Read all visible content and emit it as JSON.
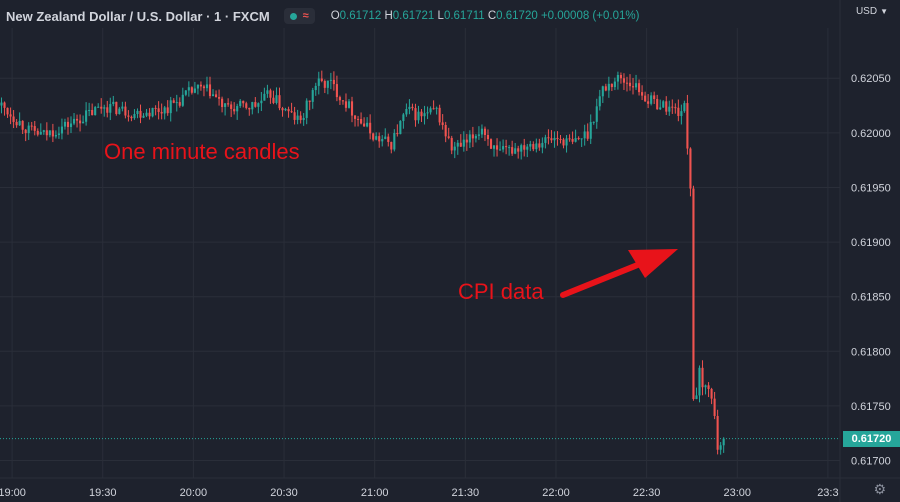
{
  "header": {
    "title": "New Zealand Dollar / U.S. Dollar · 1 · FXCM",
    "ohlc": {
      "open_label": "O",
      "open": "0.61712",
      "high_label": "H",
      "high": "0.61721",
      "low_label": "L",
      "low": "0.61711",
      "close_label": "C",
      "close": "0.61720",
      "change": "+0.00008 (+0.01%)"
    },
    "currency": "USD"
  },
  "icons": {
    "status": "dot-icon",
    "wave": "wave-icon",
    "dropdown": "chevron-down-icon",
    "settings": "gear-icon"
  },
  "colors": {
    "up": "#26a69a",
    "down": "#ef5350",
    "annotation": "#e8131a",
    "background": "#1e222d"
  },
  "annotations": {
    "candles_note": "One minute candles",
    "cpi_note": "CPI data"
  },
  "last_price_label": "0.61720",
  "chart_data": {
    "type": "candlestick",
    "interval": "1 minute",
    "x_start": "18:56",
    "x_end": "23:34",
    "y_ticks": [
      0.6205,
      0.62,
      0.6195,
      0.619,
      0.6185,
      0.618,
      0.6175,
      0.617
    ],
    "y_tick_labels": [
      "0.62050",
      "0.62000",
      "0.61950",
      "0.61900",
      "0.61850",
      "0.61800",
      "0.61750",
      "0.61700"
    ],
    "x_ticks": [
      "19:00",
      "19:30",
      "20:00",
      "20:30",
      "21:00",
      "21:30",
      "22:00",
      "22:30",
      "23:00",
      "23:30"
    ],
    "x_tick_labels": [
      "19:00",
      "19:30",
      "20:00",
      "20:30",
      "21:00",
      "21:30",
      "22:00",
      "22:30",
      "23:00",
      "23:3"
    ],
    "ylim": [
      0.61684,
      0.62096
    ],
    "last_price": 0.6172,
    "price_line": 0.6172,
    "grid": true,
    "keypoints": [
      [
        "18:56",
        0.62025
      ],
      [
        "19:05",
        0.62002
      ],
      [
        "19:10",
        0.61998
      ],
      [
        "19:20",
        0.6201
      ],
      [
        "19:30",
        0.62025
      ],
      [
        "19:40",
        0.62018
      ],
      [
        "19:50",
        0.62022
      ],
      [
        "19:55",
        0.6203
      ],
      [
        "20:00",
        0.6204
      ],
      [
        "20:05",
        0.62038
      ],
      [
        "20:10",
        0.62022
      ],
      [
        "20:20",
        0.62025
      ],
      [
        "20:25",
        0.62035
      ],
      [
        "20:30",
        0.6202
      ],
      [
        "20:35",
        0.6201
      ],
      [
        "20:40",
        0.62045
      ],
      [
        "20:45",
        0.62045
      ],
      [
        "20:55",
        0.6201
      ],
      [
        "21:00",
        0.61995
      ],
      [
        "21:05",
        0.6199
      ],
      [
        "21:10",
        0.6202
      ],
      [
        "21:15",
        0.62015
      ],
      [
        "21:20",
        0.6202
      ],
      [
        "21:25",
        0.61985
      ],
      [
        "21:30",
        0.6199
      ],
      [
        "21:35",
        0.62005
      ],
      [
        "21:40",
        0.6198
      ],
      [
        "21:50",
        0.6199
      ],
      [
        "22:00",
        0.61995
      ],
      [
        "22:05",
        0.6199
      ],
      [
        "22:10",
        0.62
      ],
      [
        "22:15",
        0.6204
      ],
      [
        "22:20",
        0.6205
      ],
      [
        "22:25",
        0.62045
      ],
      [
        "22:30",
        0.6203
      ],
      [
        "22:35",
        0.62025
      ],
      [
        "22:40",
        0.6202
      ],
      [
        "22:42",
        0.62022
      ],
      [
        "22:43",
        0.6199
      ],
      [
        "22:44",
        0.6195
      ],
      [
        "22:45",
        0.6176
      ],
      [
        "22:46",
        0.61755
      ],
      [
        "22:47",
        0.6178
      ],
      [
        "22:48",
        0.61765
      ],
      [
        "22:50",
        0.6177
      ],
      [
        "22:52",
        0.6174
      ],
      [
        "22:53",
        0.61712
      ],
      [
        "22:55",
        0.6172
      ]
    ]
  }
}
